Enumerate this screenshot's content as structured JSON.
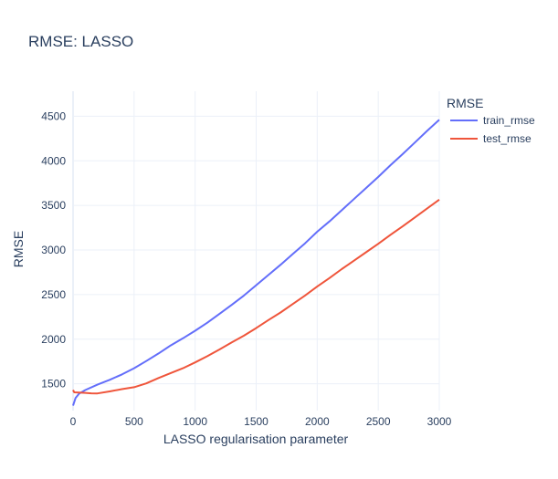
{
  "chart_data": {
    "type": "line",
    "title": "RMSE: LASSO",
    "xlabel": "LASSO regularisation parameter",
    "ylabel": "RMSE",
    "legend_title": "RMSE",
    "legend_position": "top-right",
    "grid": true,
    "xlim": [
      0,
      3000
    ],
    "ylim": [
      1200,
      4780
    ],
    "x_ticks": [
      0,
      500,
      1000,
      1500,
      2000,
      2500,
      3000
    ],
    "y_ticks": [
      1500,
      2000,
      2500,
      3000,
      3500,
      4000,
      4500
    ],
    "series": [
      {
        "name": "train_rmse",
        "color": "#636efa",
        "x": [
          0,
          20,
          50,
          100,
          200,
          300,
          400,
          500,
          600,
          700,
          800,
          900,
          1000,
          1100,
          1200,
          1300,
          1400,
          1500,
          1600,
          1700,
          1800,
          1900,
          2000,
          2100,
          2200,
          2300,
          2400,
          2500,
          2600,
          2700,
          2800,
          2900,
          3000
        ],
        "y": [
          1255,
          1340,
          1390,
          1430,
          1490,
          1545,
          1605,
          1675,
          1755,
          1840,
          1930,
          2010,
          2095,
          2185,
          2285,
          2385,
          2490,
          2605,
          2720,
          2835,
          2955,
          3075,
          3205,
          3320,
          3445,
          3570,
          3695,
          3820,
          3950,
          4075,
          4205,
          4335,
          4460
        ]
      },
      {
        "name": "test_rmse",
        "color": "#ef553b",
        "x": [
          0,
          10,
          50,
          100,
          150,
          200,
          300,
          400,
          500,
          600,
          700,
          800,
          900,
          1000,
          1100,
          1200,
          1300,
          1400,
          1500,
          1600,
          1700,
          1800,
          1900,
          2000,
          2100,
          2200,
          2300,
          2400,
          2500,
          2600,
          2700,
          2800,
          2900,
          3000
        ],
        "y": [
          1430,
          1405,
          1403,
          1398,
          1393,
          1392,
          1415,
          1440,
          1462,
          1505,
          1565,
          1620,
          1675,
          1740,
          1810,
          1885,
          1965,
          2040,
          2125,
          2215,
          2300,
          2395,
          2490,
          2590,
          2685,
          2785,
          2880,
          2975,
          3070,
          3170,
          3265,
          3365,
          3465,
          3565
        ]
      }
    ]
  }
}
